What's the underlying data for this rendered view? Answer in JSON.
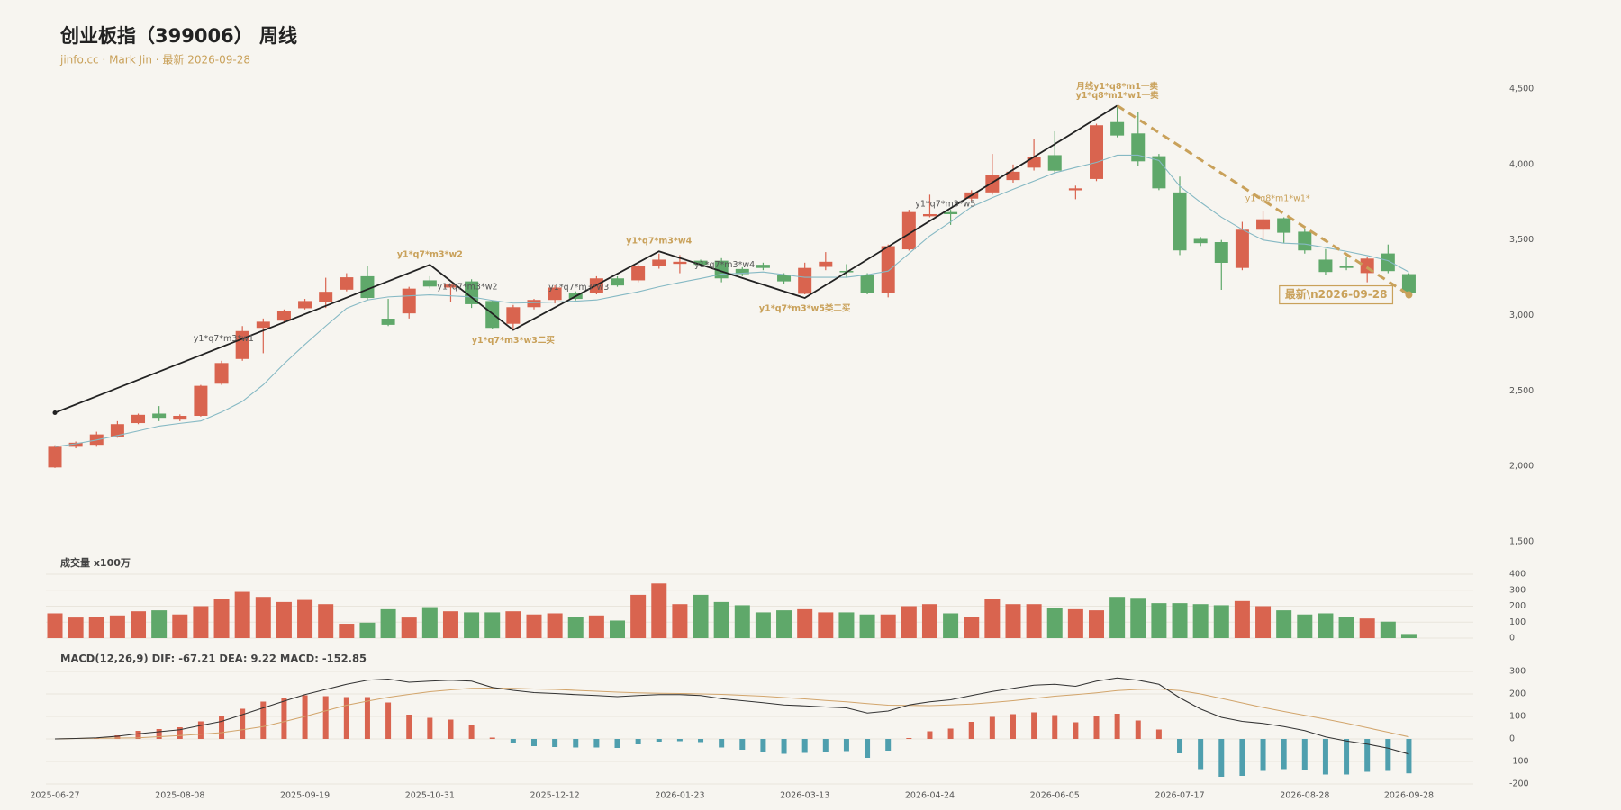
{
  "chart_data": [
    {
      "type": "candlestick",
      "title": "创业板指（399006） 周线",
      "subtitle": "jinfo.cc · Mark Jin · 最新 2026-09-28",
      "categories": [
        "2025-06-27",
        null,
        null,
        null,
        null,
        null,
        "2025-08-08",
        null,
        null,
        null,
        null,
        null,
        "2025-09-19",
        null,
        null,
        null,
        null,
        null,
        "2025-10-31",
        null,
        null,
        null,
        null,
        null,
        "2025-12-12",
        null,
        null,
        null,
        null,
        null,
        "2026-01-23",
        null,
        null,
        null,
        null,
        null,
        "2026-03-13",
        null,
        null,
        null,
        null,
        null,
        "2026-04-24",
        null,
        null,
        null,
        null,
        null,
        "2026-06-05",
        null,
        null,
        null,
        null,
        null,
        "2026-07-17",
        null,
        null,
        null,
        null,
        null,
        "2026-08-28",
        null,
        null,
        null,
        null,
        "2026-09-28"
      ],
      "open": [
        1993,
        2130,
        2143,
        2198,
        2287,
        2350,
        2310,
        2335,
        2548,
        2712,
        2918,
        2966,
        3048,
        3089,
        3171,
        3260,
        2979,
        3014,
        3233,
        3185,
        3226,
        3096,
        2945,
        3055,
        3103,
        3150,
        3150,
        3246,
        3233,
        3329,
        3342,
        3363,
        3363,
        3308,
        3336,
        3267,
        3144,
        3322,
        3295,
        3267,
        3150,
        3438,
        3657,
        3685,
        3774,
        3815,
        3897,
        3979,
        4062,
        3829,
        3904,
        4281,
        4206,
        4055,
        3815,
        3507,
        3486,
        3315,
        3568,
        3644,
        3555,
        3370,
        3329,
        3281,
        3411,
        3274
      ],
      "high": [
        2140,
        2165,
        2230,
        2300,
        2350,
        2400,
        2345,
        2540,
        2700,
        2930,
        2980,
        3040,
        3110,
        3250,
        3280,
        3330,
        3110,
        3190,
        3260,
        3210,
        3240,
        3100,
        3070,
        3110,
        3200,
        3160,
        3260,
        3260,
        3340,
        3410,
        3400,
        3370,
        3380,
        3320,
        3350,
        3280,
        3350,
        3420,
        3340,
        3280,
        3470,
        3700,
        3800,
        3700,
        3830,
        4070,
        4000,
        4170,
        4220,
        3860,
        4270,
        4380,
        4350,
        4070,
        3920,
        3520,
        3500,
        3620,
        3690,
        3650,
        3570,
        3440,
        3390,
        3390,
        3470,
        3280
      ],
      "low": [
        1990,
        2120,
        2130,
        2190,
        2280,
        2300,
        2300,
        2330,
        2540,
        2700,
        2750,
        2950,
        3040,
        3050,
        3160,
        3100,
        2930,
        2980,
        3180,
        3090,
        3050,
        2910,
        2900,
        3040,
        3080,
        3100,
        3140,
        3190,
        3220,
        3310,
        3280,
        3330,
        3220,
        3260,
        3300,
        3210,
        3140,
        3300,
        3250,
        3140,
        3120,
        3430,
        3650,
        3600,
        3760,
        3800,
        3880,
        3960,
        3940,
        3770,
        3890,
        4180,
        3990,
        3830,
        3400,
        3460,
        3170,
        3300,
        3500,
        3480,
        3410,
        3270,
        3300,
        3220,
        3280,
        3130
      ],
      "close": [
        2130,
        2157,
        2212,
        2280,
        2342,
        2322,
        2335,
        2534,
        2685,
        2897,
        2959,
        3027,
        3096,
        3157,
        3253,
        3116,
        2938,
        3178,
        3192,
        3205,
        3075,
        2918,
        3055,
        3103,
        3185,
        3110,
        3246,
        3199,
        3329,
        3370,
        3356,
        3336,
        3246,
        3274,
        3315,
        3226,
        3315,
        3356,
        3288,
        3150,
        3459,
        3685,
        3671,
        3671,
        3815,
        3931,
        3952,
        4048,
        3959,
        3842,
        4260,
        4192,
        4021,
        3842,
        3431,
        3479,
        3349,
        3568,
        3637,
        3548,
        3431,
        3288,
        3315,
        3377,
        3294,
        3150
      ],
      "up_color": "#d9644f",
      "down_color": "#5fa86a",
      "ma": {
        "color": "#86b9c4",
        "values": [
          2130,
          2150,
          2175,
          2205,
          2235,
          2267,
          2285,
          2301,
          2360,
          2431,
          2541,
          2680,
          2808,
          2930,
          3048,
          3103,
          3123,
          3130,
          3137,
          3130,
          3123,
          3100,
          3082,
          3085,
          3089,
          3095,
          3103,
          3130,
          3157,
          3190,
          3219,
          3245,
          3274,
          3280,
          3288,
          3270,
          3253,
          3253,
          3253,
          3270,
          3294,
          3410,
          3527,
          3620,
          3719,
          3780,
          3836,
          3890,
          3945,
          3980,
          4014,
          4062,
          4062,
          4027,
          3856,
          3750,
          3651,
          3570,
          3500,
          3479,
          3473,
          3450,
          3425,
          3397,
          3363,
          3288
        ]
      },
      "ylim": [
        1500,
        4500
      ],
      "yticks": [
        {
          "value": 1500,
          "label": "1,500"
        },
        {
          "value": 2000,
          "label": "2,000"
        },
        {
          "value": 2500,
          "label": "2,500"
        },
        {
          "value": 3000,
          "label": "3,000"
        },
        {
          "value": 3500,
          "label": "3,500"
        },
        {
          "value": 4000,
          "label": "4,000"
        },
        {
          "value": 4500,
          "label": "4,500"
        }
      ],
      "grid": false,
      "pivot_color": "#222222",
      "annotation_color": "#c9a15a",
      "pivots": [
        {
          "x": 0,
          "value": 2356
        },
        {
          "x": 18,
          "value": 3336,
          "labels": [
            "y1*q7*m3*w2"
          ]
        },
        {
          "x": 22,
          "value": 2904,
          "labels": [
            "y1*q7*m3*w3二买"
          ]
        },
        {
          "x": 29,
          "value": 3425,
          "labels": [
            "y1*q7*m3*w4"
          ]
        },
        {
          "x": 36,
          "value": 3116,
          "labels": [
            "y1*q7*m3*w5类二买"
          ]
        },
        {
          "x": 51,
          "value": 4390,
          "labels": [
            "月线y1*q8*m1一卖",
            "y1*q8*m1*w1一卖"
          ]
        }
      ],
      "segment_labels": [
        "y1*q7*m3*w1",
        "y1*q7*m3*w2",
        "y1*q7*m3*w3",
        "y1*q7*m3*w4",
        "y1*q7*m3*w5"
      ],
      "trend": {
        "x": [
          51,
          65
        ],
        "values": [
          4390,
          3137
        ],
        "label": "y1*q8*m1*w1*",
        "end_label": "最新\\n2026-09-28",
        "color": "#c9a15a"
      }
    },
    {
      "type": "bar",
      "title": "成交量 x100万",
      "values": [
        155,
        129,
        135,
        142,
        168,
        174,
        148,
        200,
        245,
        290,
        258,
        226,
        239,
        213,
        90,
        97,
        181,
        129,
        194,
        168,
        161,
        161,
        168,
        148,
        155,
        135,
        142,
        110,
        271,
        342,
        213,
        271,
        226,
        206,
        161,
        174,
        181,
        161,
        161,
        148,
        148,
        200,
        213,
        155,
        135,
        245,
        213,
        213,
        187,
        181,
        174,
        258,
        252,
        219,
        219,
        213,
        206,
        232,
        200,
        174,
        148,
        155,
        135,
        123,
        103,
        26
      ],
      "ylim": [
        0,
        400
      ],
      "yticks": [
        0,
        100,
        200,
        300,
        400
      ],
      "grid": true
    },
    {
      "type": "macd",
      "title": "MACD(12,26,9) DIF: -67.21 DEA: 9.22 MACD: -152.85",
      "dif": {
        "color": "#333333",
        "values": [
          0,
          2,
          5,
          12,
          23,
          32,
          41,
          60,
          78,
          108,
          138,
          168,
          197,
          220,
          243,
          261,
          266,
          252,
          257,
          261,
          257,
          229,
          216,
          206,
          202,
          197,
          193,
          188,
          193,
          197,
          197,
          193,
          179,
          170,
          161,
          151,
          147,
          142,
          138,
          115,
          124,
          151,
          165,
          174,
          193,
          211,
          225,
          239,
          243,
          234,
          257,
          271,
          261,
          243,
          183,
          133,
          96,
          78,
          69,
          55,
          37,
          9,
          -9,
          -23,
          -41,
          -67.21
        ]
      },
      "dea": {
        "color": "#d2a56c",
        "values": [
          0,
          2,
          3,
          4,
          5,
          10,
          15,
          21,
          28,
          41,
          55,
          77,
          100,
          125,
          150,
          168,
          185,
          198,
          210,
          218,
          225,
          226,
          225,
          222,
          220,
          216,
          212,
          208,
          205,
          203,
          202,
          200,
          198,
          194,
          190,
          184,
          178,
          171,
          165,
          157,
          150,
          149,
          148,
          151,
          155,
          162,
          170,
          180,
          190,
          197,
          205,
          215,
          220,
          222,
          215,
          200,
          180,
          160,
          140,
          122,
          105,
          88,
          70,
          50,
          30,
          9.22
        ]
      },
      "histogram": {
        "up_color": "#d9644f",
        "down_color": "#4f9fae",
        "values": [
          0,
          0,
          4,
          16,
          36,
          44,
          52,
          78,
          100,
          134,
          166,
          182,
          194,
          190,
          186,
          186,
          162,
          108,
          94,
          86,
          64,
          6,
          -18,
          -32,
          -36,
          -38,
          -38,
          -40,
          -24,
          -12,
          -10,
          -14,
          -38,
          -48,
          -58,
          -66,
          -62,
          -58,
          -54,
          -84,
          -52,
          4,
          34,
          46,
          76,
          98,
          110,
          118,
          106,
          74,
          104,
          112,
          82,
          42,
          -64,
          -134,
          -168,
          -164,
          -142,
          -134,
          -136,
          -158,
          -158,
          -146,
          -142,
          -152.85
        ]
      },
      "ylim": [
        -200,
        300
      ],
      "yticks": [
        -200,
        -100,
        0,
        100,
        200,
        300
      ],
      "grid": true
    }
  ]
}
